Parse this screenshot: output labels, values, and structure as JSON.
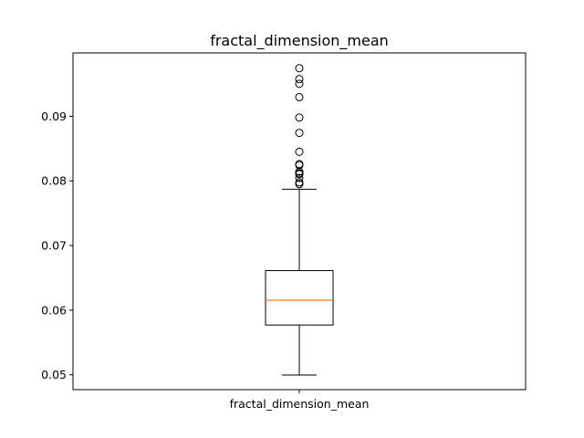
{
  "chart_data": {
    "type": "boxplot",
    "title": "fractal_dimension_mean",
    "xlabel": "",
    "ylabel": "",
    "categories": [
      "fractal_dimension_mean"
    ],
    "ylim": [
      0.0477,
      0.0998
    ],
    "y_ticks": [
      0.05,
      0.06,
      0.07,
      0.08,
      0.09
    ],
    "y_tick_labels": [
      "0.05",
      "0.06",
      "0.07",
      "0.08",
      "0.09"
    ],
    "grid": false,
    "legend": "none",
    "box": {
      "whisker_low": 0.04996,
      "q1": 0.0577,
      "median": 0.06154,
      "q3": 0.06612,
      "whisker_high": 0.07871
    },
    "outliers": [
      0.09744,
      0.09575,
      0.09502,
      0.09296,
      0.0898,
      0.08743,
      0.0845,
      0.08261,
      0.08243,
      0.08142,
      0.08116,
      0.08104,
      0.08046,
      0.07976,
      0.0795
    ],
    "colors": {
      "box": "#000000",
      "median": "#ff7f0e",
      "outlier_edge": "#000000",
      "axes": "#000000"
    }
  }
}
